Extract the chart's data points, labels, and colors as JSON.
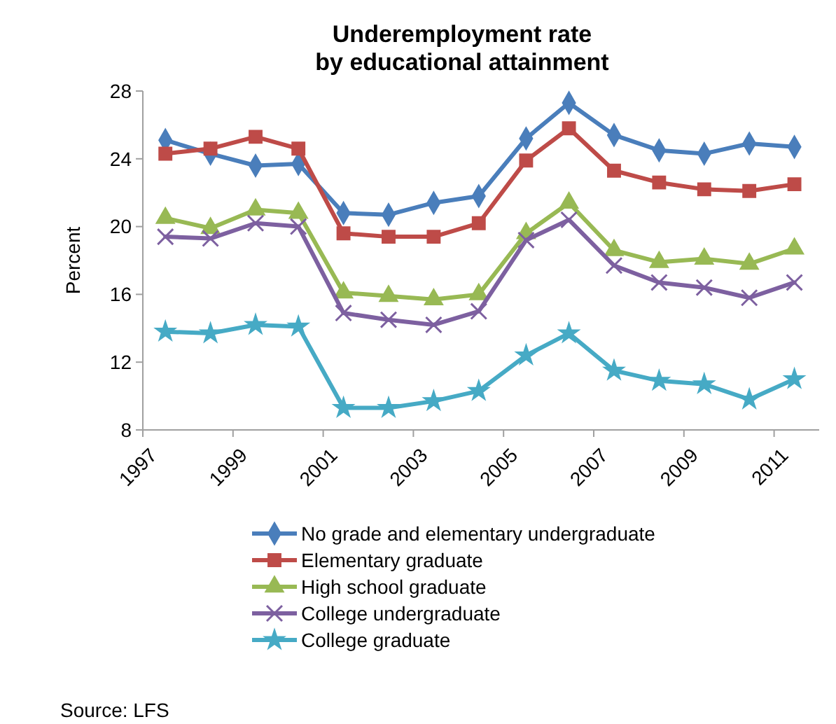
{
  "chart_data": {
    "type": "line",
    "title": "Underemployment rate\nby educational attainment",
    "ylabel": "Percent",
    "x": [
      1997.5,
      1998.5,
      1999.5,
      2000.45,
      2001.45,
      2002.45,
      2003.45,
      2004.45,
      2005.5,
      2006.45,
      2007.45,
      2008.45,
      2009.45,
      2010.45,
      2011.45
    ],
    "xlim": [
      1997,
      2012
    ],
    "xticks": [
      1997,
      1999,
      2001,
      2003,
      2005,
      2007,
      2009,
      2011
    ],
    "ylim": [
      8,
      28
    ],
    "yticks": [
      8,
      12,
      16,
      20,
      24,
      28
    ],
    "grid": false,
    "legend": "bottom",
    "line_style": "solid",
    "series": [
      {
        "name": "No grade and elementary undergraduate",
        "color": "#4a7ebb",
        "marker": "diamond",
        "values": [
          25.1,
          24.3,
          23.6,
          23.7,
          20.8,
          20.7,
          21.4,
          21.8,
          25.2,
          27.3,
          25.4,
          24.5,
          24.3,
          24.9,
          24.7
        ]
      },
      {
        "name": "Elementary graduate",
        "color": "#be4b48",
        "marker": "square",
        "values": [
          24.3,
          24.6,
          25.3,
          24.6,
          19.6,
          19.4,
          19.4,
          20.2,
          23.9,
          25.8,
          23.3,
          22.6,
          22.2,
          22.1,
          22.5
        ]
      },
      {
        "name": "High school graduate",
        "color": "#98b954",
        "marker": "triangle",
        "values": [
          20.5,
          19.9,
          21.0,
          20.8,
          16.1,
          15.9,
          15.7,
          16.0,
          19.6,
          21.4,
          18.6,
          17.9,
          18.1,
          17.8,
          18.7
        ]
      },
      {
        "name": "College undergraduate",
        "color": "#7d60a0",
        "marker": "cross",
        "values": [
          19.4,
          19.3,
          20.2,
          20.0,
          14.9,
          14.5,
          14.2,
          15.0,
          19.2,
          20.4,
          17.7,
          16.7,
          16.4,
          15.8,
          16.7
        ]
      },
      {
        "name": "College graduate",
        "color": "#46aac5",
        "marker": "star",
        "values": [
          13.8,
          13.7,
          14.2,
          14.1,
          9.3,
          9.3,
          9.7,
          10.3,
          12.4,
          13.7,
          11.5,
          10.9,
          10.7,
          9.8,
          11.0
        ]
      }
    ],
    "annotations": [
      "Source: LFS"
    ]
  }
}
